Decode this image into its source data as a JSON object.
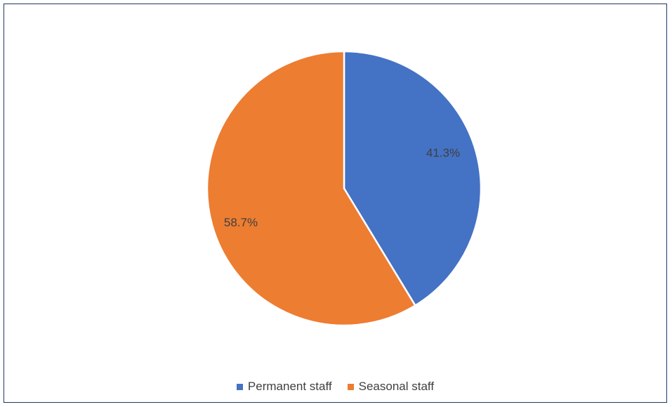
{
  "chart_data": {
    "type": "pie",
    "categories": [
      "Permanent staff",
      "Seasonal staff"
    ],
    "values": [
      41.3,
      58.7
    ],
    "data_labels": [
      "41.3%",
      "58.7%"
    ],
    "colors": [
      "#4472c4",
      "#ed7d31"
    ],
    "title": "",
    "legend_position": "bottom",
    "start_angle": "12 o'clock",
    "direction": "clockwise"
  },
  "legend": {
    "items": [
      {
        "label": "Permanent staff",
        "color": "#4472c4"
      },
      {
        "label": "Seasonal staff",
        "color": "#ed7d31"
      }
    ]
  }
}
